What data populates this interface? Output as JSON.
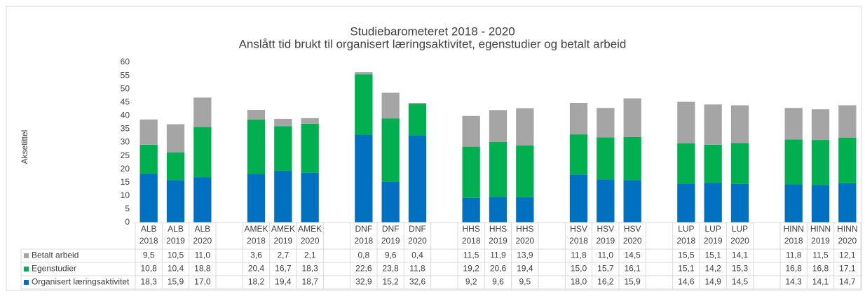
{
  "chart_data": {
    "type": "stacked_bar",
    "title": "Studiebarometeret 2018 - 2020",
    "subtitle": "Anslått tid brukt til organisert læringsaktivitet, egenstudier og betalt arbeid",
    "y_label": "Aksetittel",
    "categories": [
      "ALB\n2018",
      "ALB\n2019",
      "ALB\n2020",
      null,
      "AMEK\n2018",
      "AMEK\n2019",
      "AMEK\n2020",
      null,
      "DNF\n2018",
      "DNF\n2019",
      "DNF\n2020",
      null,
      "HHS\n2018",
      "HHS\n2019",
      "HHS\n2020",
      null,
      "HSV\n2018",
      "HSV\n2019",
      "HSV\n2020",
      null,
      "LUP\n2018",
      "LUP\n2019",
      "LUP\n2020",
      null,
      "HINN\n2018",
      "HINN\n2019",
      "HINN\n2020"
    ],
    "series": [
      {
        "name": "Betalt arbeid",
        "color": "#a5a5a5",
        "values": [
          9.5,
          10.5,
          11.0,
          null,
          3.6,
          2.7,
          2.1,
          null,
          0.8,
          9.6,
          0.4,
          null,
          11.5,
          11.9,
          13.9,
          null,
          11.8,
          11.0,
          14.5,
          null,
          15.5,
          15.1,
          14.1,
          null,
          11.8,
          11.5,
          12.1
        ],
        "value_labels": [
          "9,5",
          "10,5",
          "11,0",
          null,
          "3,6",
          "2,7",
          "2,1",
          null,
          "0,8",
          "9,6",
          "0,4",
          null,
          "11,5",
          "11,9",
          "13,9",
          null,
          "11,8",
          "11,0",
          "14,5",
          null,
          "15,5",
          "15,1",
          "14,1",
          null,
          "11,8",
          "11,5",
          "12,1"
        ]
      },
      {
        "name": "Egenstudier",
        "color": "#00b050",
        "values": [
          10.8,
          10.4,
          18.8,
          null,
          20.4,
          16.7,
          18.3,
          null,
          22.6,
          23.8,
          11.8,
          null,
          19.2,
          20.6,
          19.4,
          null,
          15.0,
          15.7,
          16.1,
          null,
          15.1,
          14.2,
          15.3,
          null,
          16.8,
          16.8,
          17.1
        ],
        "value_labels": [
          "10,8",
          "10,4",
          "18,8",
          null,
          "20,4",
          "16,7",
          "18,3",
          null,
          "22,6",
          "23,8",
          "11,8",
          null,
          "19,2",
          "20,6",
          "19,4",
          null,
          "15,0",
          "15,7",
          "16,1",
          null,
          "15,1",
          "14,2",
          "15,3",
          null,
          "16,8",
          "16,8",
          "17,1"
        ]
      },
      {
        "name": "Organisert læringsaktivitet",
        "color": "#0070c0",
        "values": [
          18.3,
          15.9,
          17.0,
          null,
          18.2,
          19.4,
          18.7,
          null,
          32.9,
          15.2,
          32.6,
          null,
          9.2,
          9.6,
          9.5,
          null,
          18.0,
          16.2,
          15.9,
          null,
          14.6,
          14.9,
          14.5,
          null,
          14.3,
          14.1,
          14.7
        ],
        "value_labels": [
          "18,3",
          "15,9",
          "17,0",
          null,
          "18,2",
          "19,4",
          "18,7",
          null,
          "32,9",
          "15,2",
          "32,6",
          null,
          "9,2",
          "9,6",
          "9,5",
          null,
          "18,0",
          "16,2",
          "15,9",
          null,
          "14,6",
          "14,9",
          "14,5",
          null,
          "14,3",
          "14,1",
          "14,7"
        ]
      }
    ],
    "ylim": [
      0,
      60
    ],
    "yticks": [
      0,
      5,
      10,
      15,
      20,
      25,
      30,
      35,
      40,
      45,
      50,
      55,
      60
    ],
    "grid": false
  }
}
